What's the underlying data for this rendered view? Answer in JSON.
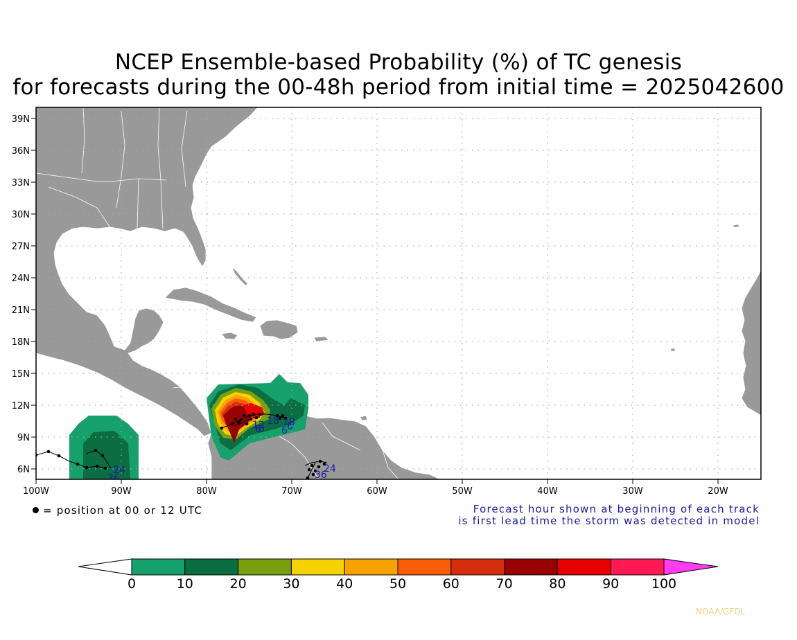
{
  "title": {
    "line1": "NCEP Ensemble-based Probability (%) of TC genesis",
    "line2": "for forecasts during the 00-48h period from initial time = 2025042600"
  },
  "lat_labels": [
    "39N",
    "36N",
    "33N",
    "30N",
    "27N",
    "24N",
    "21N",
    "18N",
    "15N",
    "12N",
    "9N",
    "6N"
  ],
  "lon_labels": [
    "100W",
    "90W",
    "80W",
    "70W",
    "60W",
    "50W",
    "40W",
    "30W",
    "20W"
  ],
  "legend_note": "= position at 00 or 12 UTC",
  "forecast_note": {
    "line1": "Forecast hour shown at beginning of each track",
    "line2": "is first lead time the storm was detected in model"
  },
  "colorbar": {
    "labels": [
      "0",
      "10",
      "20",
      "30",
      "40",
      "50",
      "60",
      "70",
      "80",
      "90",
      "100"
    ],
    "colors": [
      "#16a06c",
      "#0b6e42",
      "#78a010",
      "#f5d200",
      "#f7a200",
      "#f95e07",
      "#d42e0e",
      "#990000",
      "#e60000",
      "#ff1a55"
    ],
    "over_color": "#ff3cf0",
    "under_color": "#ffffff"
  },
  "track_labels": [
    "24",
    "36",
    "18",
    "12",
    "6",
    "0",
    "18",
    "6",
    "6",
    "24",
    "36"
  ],
  "credit": "NOAA/GFDL",
  "colors": {
    "land": "#999999",
    "ocean": "#ffffff",
    "label_blue": "#1a1aa6"
  }
}
